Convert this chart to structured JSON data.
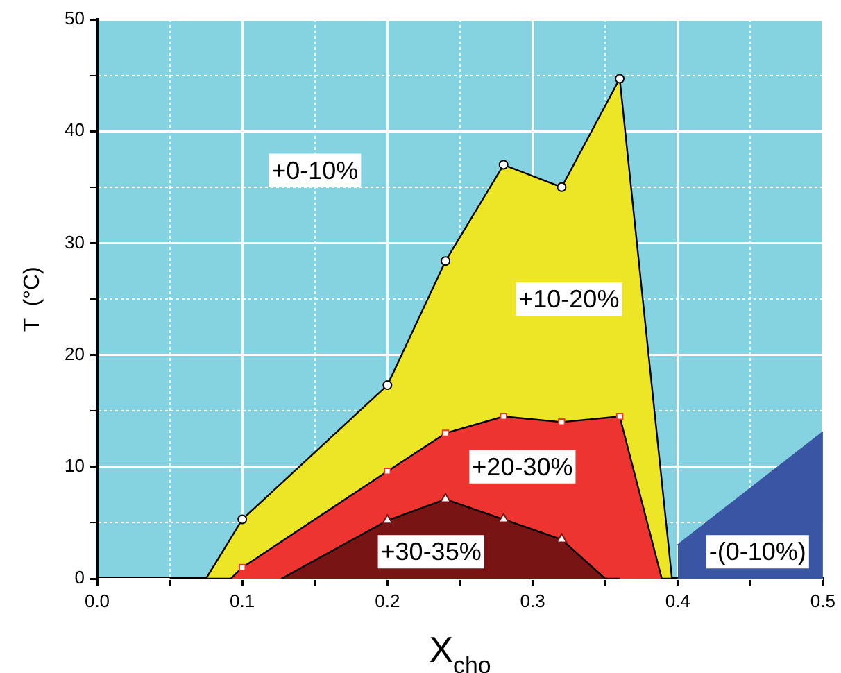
{
  "chart_data": {
    "type": "area",
    "xlabel": "X$_{cho}$",
    "ylabel": "T  (°C)",
    "xlim": [
      0,
      0.5
    ],
    "xticks": [
      {
        "value": 0,
        "label": "0.0"
      },
      {
        "value": 0.05,
        "label": null
      },
      0.1,
      {
        "value": 0.15,
        "label": null
      },
      0.2,
      {
        "value": 0.25,
        "label": null
      },
      0.3,
      {
        "value": 0.35,
        "label": null
      },
      0.4,
      {
        "value": 0.45,
        "label": null
      },
      0.5
    ],
    "ylim": [
      0,
      50
    ],
    "yticks": [
      0,
      {
        "value": 5,
        "label": null
      },
      10,
      {
        "value": 15,
        "label": null
      },
      20,
      {
        "value": 25,
        "label": null
      },
      30,
      {
        "value": 35,
        "label": null
      },
      40,
      {
        "value": 45,
        "label": null
      },
      50
    ],
    "grid": true,
    "legend": false,
    "bands": [
      {
        "axis": "y",
        "from": 0,
        "to": 50,
        "color": "#85d2e0"
      }
    ],
    "series": [
      {
        "color": "#ece626",
        "marker": "circle",
        "x": [
          0.075,
          0.1,
          0.2,
          0.24,
          0.28,
          0.32,
          0.36,
          0.396
        ],
        "values": [
          0,
          5.3,
          17.3,
          28.4,
          37,
          35,
          44.7,
          0
        ]
      },
      {
        "color": "#ee3430",
        "marker": "square",
        "x": [
          0.05,
          0.092,
          0.1,
          0.2,
          0.24,
          0.28,
          0.32,
          0.36,
          0.389,
          0.4
        ],
        "values": [
          0,
          0,
          1,
          9.6,
          13,
          14.5,
          14,
          14.5,
          0,
          0
        ]
      },
      {
        "color": "#781414",
        "marker": "triangle",
        "x": [
          0.127,
          0.2,
          0.24,
          0.28,
          0.32,
          0.35,
          0.36
        ],
        "values": [
          0,
          5.2,
          7.1,
          5.3,
          3.5,
          0,
          0
        ]
      },
      {
        "color": "#3a55a3",
        "marker": "none",
        "x": [
          0.4,
          0.5
        ],
        "values": [
          3,
          13.1
        ]
      }
    ],
    "annotations": [
      "+0-10%",
      "+10-20%",
      "+20-30%",
      "+30-35%",
      "-(0-10%)"
    ]
  }
}
